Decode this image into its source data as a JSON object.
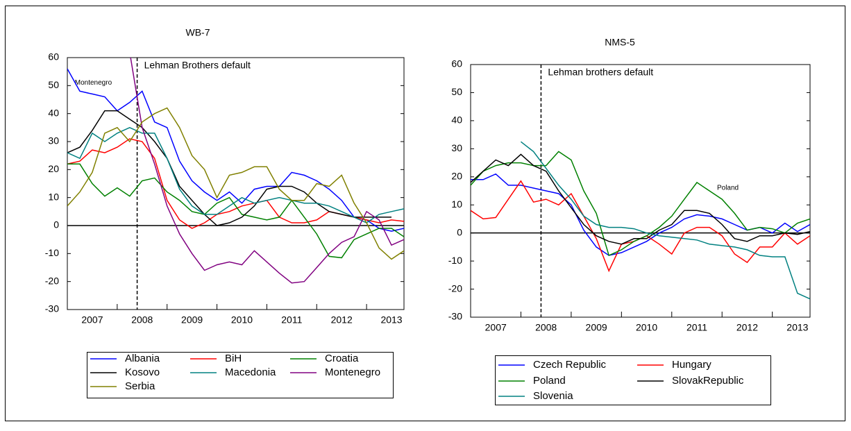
{
  "chart_data": [
    {
      "type": "line",
      "title": "WB-7",
      "x": [
        2007,
        2007.25,
        2007.5,
        2007.75,
        2008,
        2008.25,
        2008.5,
        2008.75,
        2009,
        2009.25,
        2009.5,
        2009.75,
        2010,
        2010.25,
        2010.5,
        2010.75,
        2011,
        2011.25,
        2011.5,
        2011.75,
        2012,
        2012.25,
        2012.5,
        2012.75,
        2013,
        2013.25,
        2013.5,
        2013.75
      ],
      "xlim": [
        2007,
        2013.75
      ],
      "xticks": [
        2007,
        2008,
        2009,
        2010,
        2011,
        2012,
        2013
      ],
      "ylim": [
        -30,
        60
      ],
      "yticks": [
        -30,
        -20,
        -10,
        0,
        10,
        20,
        30,
        40,
        50,
        60
      ],
      "vline": {
        "x": 2008.4,
        "label": "Lehman Brothers default"
      },
      "annotations": [
        "Montenegro"
      ],
      "series": [
        {
          "name": "Albania",
          "color": "#0000ff",
          "values": [
            56,
            48,
            47,
            46,
            41,
            44,
            48,
            37,
            35,
            23,
            16,
            12,
            9,
            12,
            8,
            13,
            14,
            14,
            19,
            18,
            16,
            13,
            9,
            3,
            2,
            -1,
            -2,
            -1
          ]
        },
        {
          "name": "BiH",
          "color": "#ff0000",
          "values": [
            22,
            23,
            27,
            26,
            28,
            31,
            30,
            24,
            9,
            2,
            -1,
            1,
            4,
            5,
            7,
            8,
            9,
            3,
            1,
            1,
            2,
            5,
            4,
            3,
            2,
            1,
            2,
            1.5
          ]
        },
        {
          "name": "Croatia",
          "color": "#008000",
          "values": [
            22,
            22,
            15,
            10.5,
            13.5,
            10.5,
            16,
            17,
            12,
            9,
            5,
            4,
            8,
            10,
            4,
            3,
            2,
            3,
            9,
            3,
            -3,
            -11,
            -11.5,
            -5,
            -3,
            -1,
            -1,
            -4
          ]
        },
        {
          "name": "Kosovo",
          "color": "#000000",
          "values": [
            26,
            28,
            34,
            41,
            41,
            38,
            35,
            30,
            24,
            14,
            9,
            4,
            0,
            1,
            3,
            7,
            13,
            14,
            14,
            12,
            8,
            5,
            4,
            3,
            3,
            3,
            3,
            null
          ]
        },
        {
          "name": "Macedonia",
          "color": "#008080",
          "values": [
            26,
            24,
            33,
            30,
            33,
            35,
            33,
            33,
            24,
            13,
            7,
            4,
            4,
            7,
            10,
            8,
            9,
            10,
            9,
            8,
            8,
            7,
            5,
            3,
            1,
            4,
            5,
            6
          ]
        },
        {
          "name": "Montenegro",
          "color": "#800080",
          "values": [
            null,
            null,
            null,
            null,
            null,
            62,
            35,
            22,
            7,
            -3,
            -10,
            -16,
            -14,
            -13,
            -14,
            -9,
            -13,
            -17,
            -20.5,
            -20,
            -15,
            -10,
            -6,
            -4,
            5,
            2,
            -7,
            -5
          ]
        },
        {
          "name": "Serbia",
          "color": "#808000",
          "values": [
            7,
            12,
            19,
            33,
            35,
            30,
            37,
            40,
            42,
            35,
            25,
            20,
            10,
            18,
            19,
            21,
            21,
            13,
            9,
            9,
            15,
            14,
            18,
            8,
            1,
            -8,
            -12,
            -9
          ]
        }
      ]
    },
    {
      "type": "line",
      "title": "NMS-5",
      "x": [
        2007,
        2007.25,
        2007.5,
        2007.75,
        2008,
        2008.25,
        2008.5,
        2008.75,
        2009,
        2009.25,
        2009.5,
        2009.75,
        2010,
        2010.25,
        2010.5,
        2010.75,
        2011,
        2011.25,
        2011.5,
        2011.75,
        2012,
        2012.25,
        2012.5,
        2012.75,
        2013,
        2013.25,
        2013.5,
        2013.75
      ],
      "xlim": [
        2007,
        2013.75
      ],
      "xticks": [
        2007,
        2008,
        2009,
        2010,
        2011,
        2012,
        2013
      ],
      "ylim": [
        -30,
        60
      ],
      "yticks": [
        -30,
        -20,
        -10,
        0,
        10,
        20,
        30,
        40,
        50,
        60
      ],
      "vline": {
        "x": 2008.4,
        "label": "Lehman brothers default"
      },
      "annotations": [
        "Poland"
      ],
      "series": [
        {
          "name": "Czech Republic",
          "color": "#0000ff",
          "values": [
            19,
            19,
            21,
            17,
            17,
            16,
            15,
            14,
            10,
            1,
            -5,
            -8,
            -7,
            -5,
            -3,
            0,
            2,
            5,
            6.5,
            6,
            5,
            3,
            1,
            2,
            0,
            3.5,
            0.5,
            3
          ]
        },
        {
          "name": "Hungary",
          "color": "#ff0000",
          "values": [
            8,
            5,
            5.5,
            12,
            18.5,
            11,
            12,
            10,
            14,
            6,
            -2,
            -13.5,
            -4,
            -3,
            -1,
            -4,
            -7.5,
            0,
            2,
            2,
            -1,
            -7.5,
            -10.5,
            -5,
            -5,
            0,
            -4,
            -1
          ]
        },
        {
          "name": "Poland",
          "color": "#008000",
          "values": [
            17,
            22,
            24,
            25,
            25,
            24,
            24,
            29,
            26,
            15,
            7,
            -8,
            -6,
            -3,
            -1,
            2,
            6,
            12,
            18,
            15,
            12,
            7,
            1,
            2,
            1.5,
            0,
            3.5,
            5
          ]
        },
        {
          "name": "SlovakRepublic",
          "color": "#000000",
          "values": [
            18,
            22,
            26,
            24,
            28,
            24,
            22,
            15,
            9,
            3,
            -1,
            -3,
            -4,
            -2,
            -2,
            1,
            3,
            8,
            8,
            7,
            3,
            -2,
            -3,
            -1,
            -1,
            0,
            -0.5,
            0.5
          ]
        },
        {
          "name": "Slovenia",
          "color": "#008080",
          "values": [
            null,
            null,
            null,
            null,
            32.5,
            29,
            23,
            17,
            12,
            6,
            3,
            2,
            2,
            1.5,
            0,
            -1,
            -1.5,
            -2,
            -2.5,
            -4,
            -4.5,
            -5,
            -6,
            -8,
            -8.5,
            -8.5,
            -21.5,
            -23.5
          ]
        }
      ]
    }
  ]
}
